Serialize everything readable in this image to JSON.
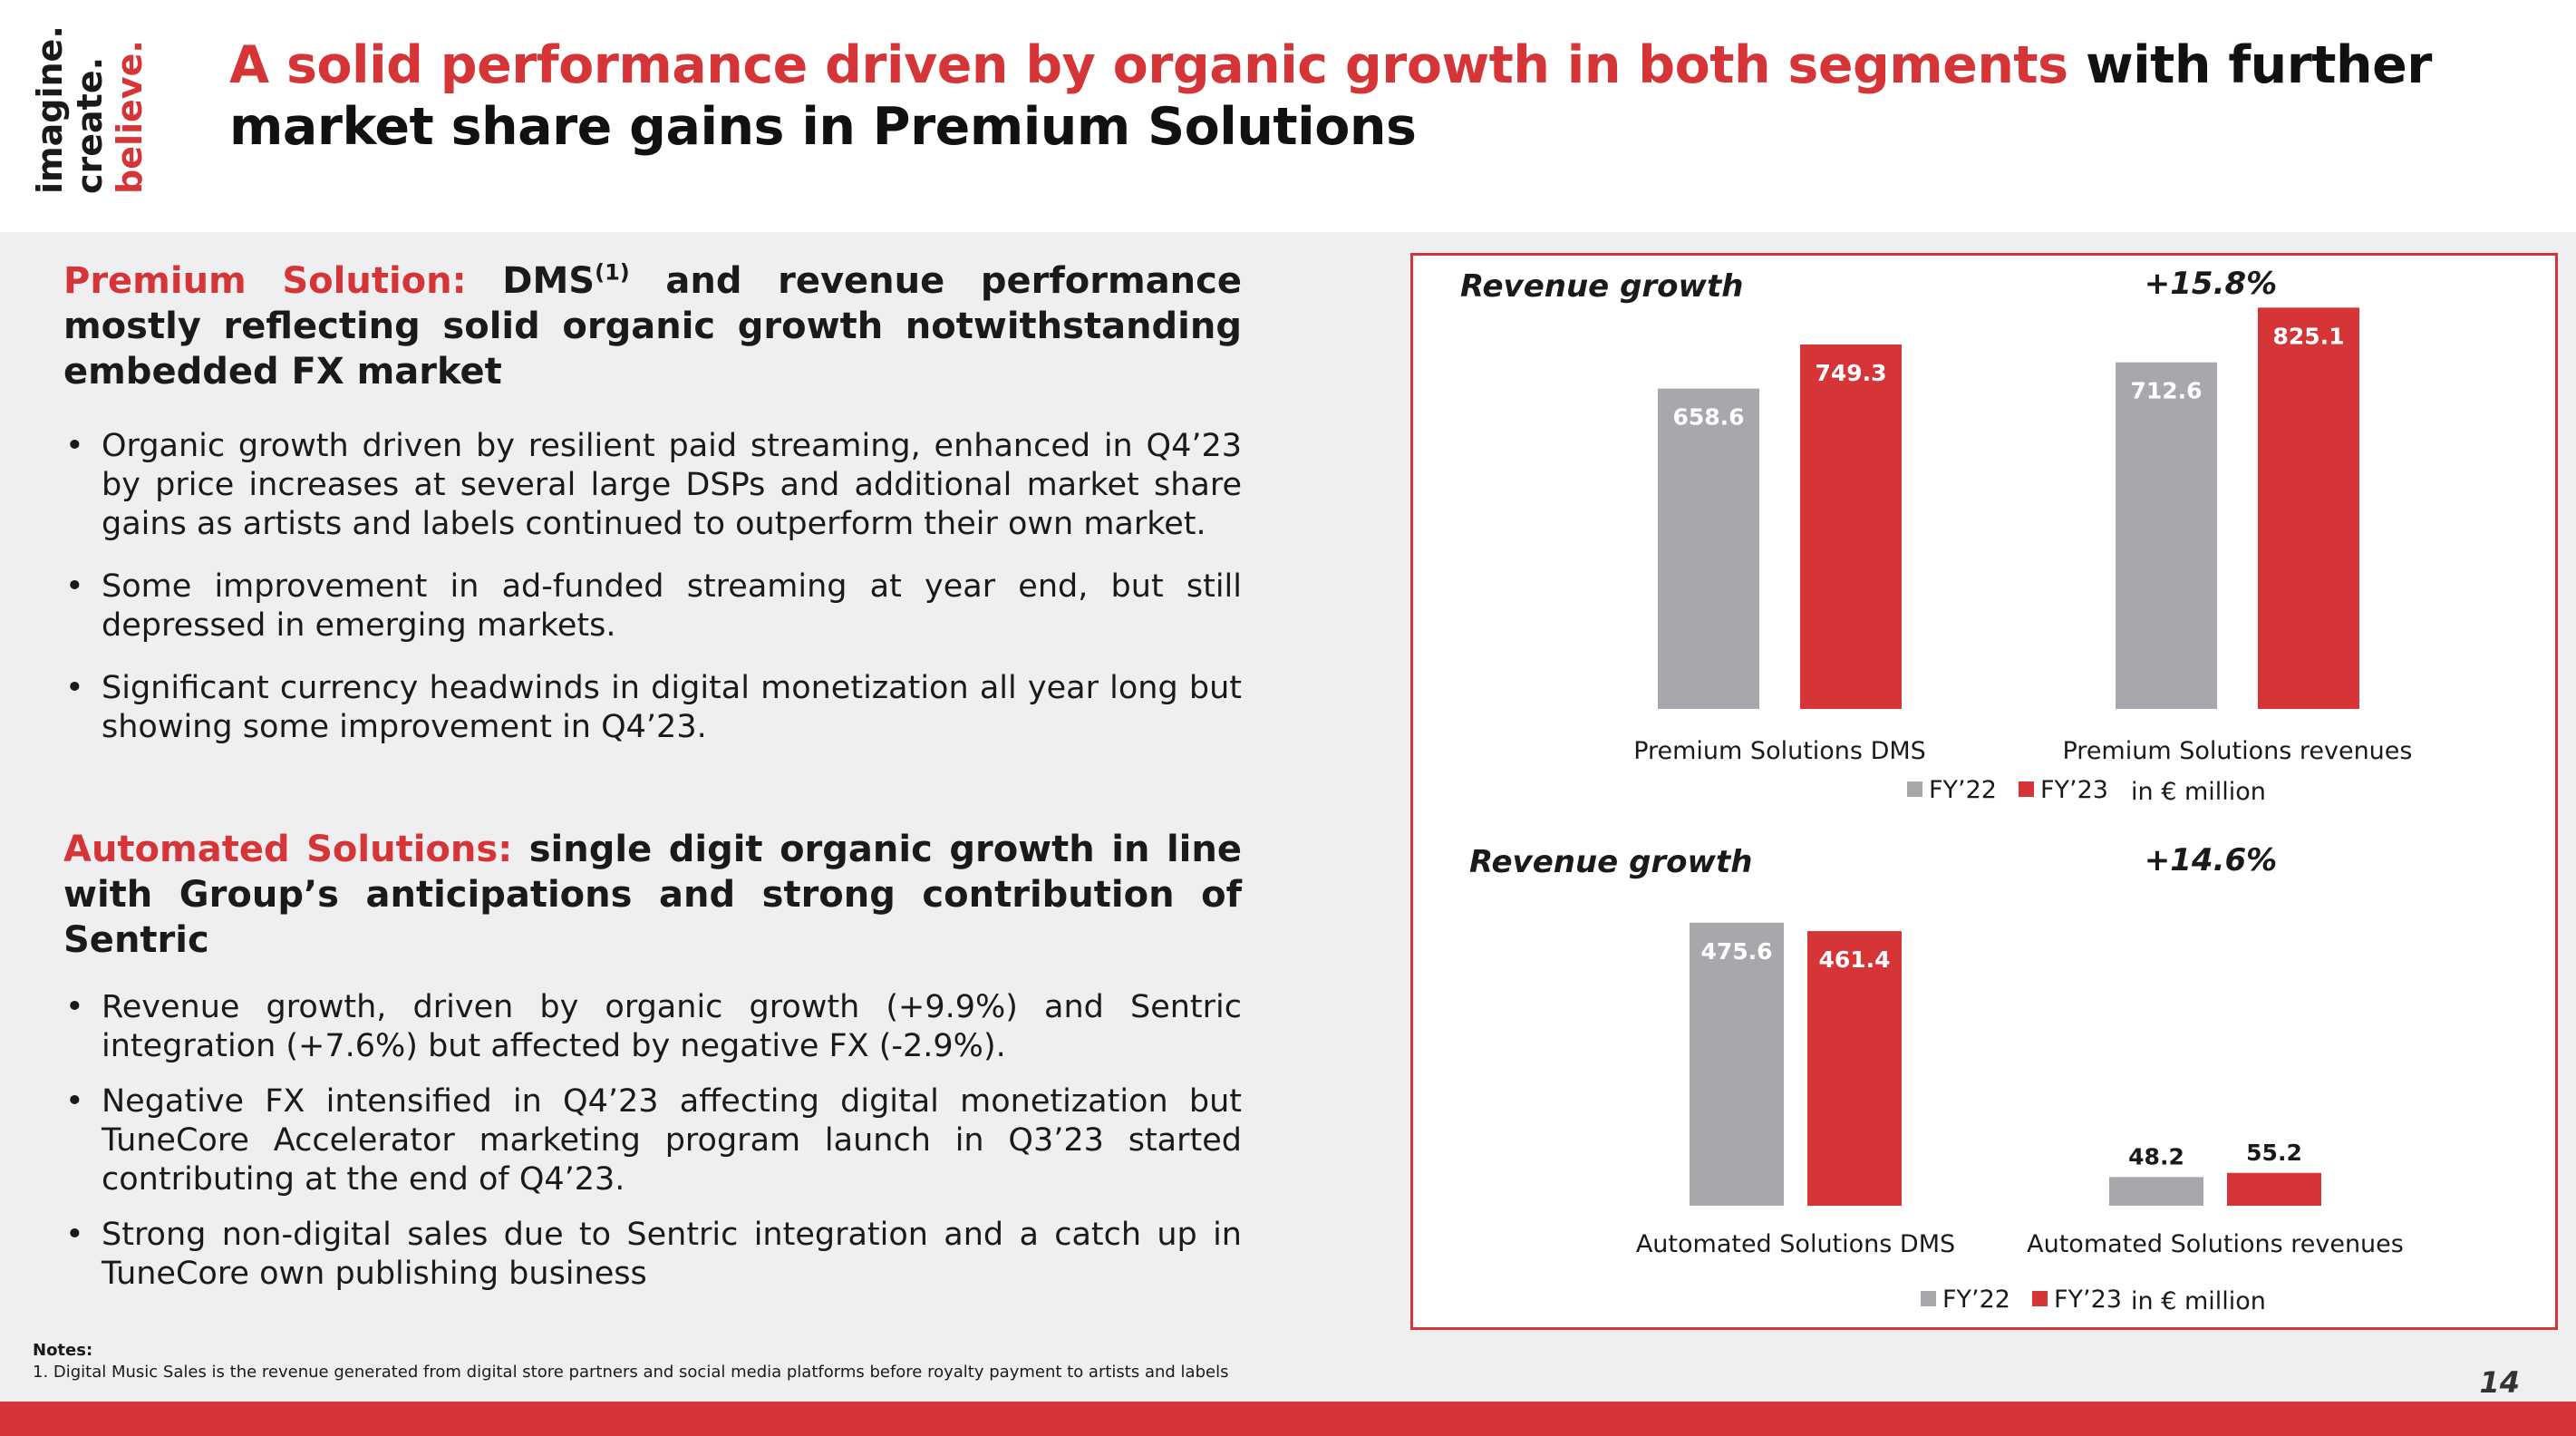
{
  "logo": {
    "lines": [
      "imagine.",
      "create.",
      "believe."
    ]
  },
  "title": {
    "red": "A solid performance driven by organic growth in both segments",
    "dark": " with further market share gains in Premium Solutions"
  },
  "premium": {
    "head_red": "Premium Solution:",
    "head_dark_pre": " DMS",
    "head_sup": "(1)",
    "head_dark_post": " and revenue performance mostly reflecting solid organic growth notwithstanding embedded FX market",
    "bullets": [
      "Organic growth driven by resilient paid streaming, enhanced in Q4’23 by price increases at several large DSPs and additional market share gains as artists and labels continued to outperform their own market.",
      "Some improvement in ad-funded streaming at year end, but still depressed in emerging markets.",
      "Significant currency headwinds in digital monetization all year long but showing some improvement in Q4’23."
    ]
  },
  "automated": {
    "head_red": "Automated Solutions:",
    "head_dark": " single digit organic growth in line with Group’s anticipations and strong contribution of Sentric",
    "bullets": [
      "Revenue growth, driven by organic growth (+9.9%) and Sentric integration (+7.6%) but affected by negative FX (-2.9%).",
      "Negative FX intensified in Q4’23 affecting digital monetization but TuneCore Accelerator marketing program launch in Q3’23 started contributing at the end of Q4’23.",
      "Strong non-digital sales due to Sentric integration and a catch up in TuneCore own publishing business"
    ]
  },
  "notes": {
    "title": "Notes:",
    "items": [
      "1. Digital Music Sales is the revenue generated from digital store partners and social media platforms before royalty payment to artists and labels"
    ]
  },
  "page_number": "14",
  "colors": {
    "accent": "#d63538",
    "fy22": "#a6a8ab",
    "fy23": "#d63538"
  },
  "chart_data": [
    {
      "type": "bar",
      "title": "Revenue growth",
      "annotation": "+15.8%",
      "unit_note": "in € million",
      "categories": [
        "Premium Solutions DMS",
        "Premium Solutions revenues"
      ],
      "series": [
        {
          "name": "FY’22",
          "values": [
            658.6,
            712.6
          ]
        },
        {
          "name": "FY’23",
          "values": [
            749.3,
            825.1
          ]
        }
      ],
      "value_labels": [
        [
          "658.6",
          "712.6"
        ],
        [
          "749.3",
          "825.1"
        ]
      ],
      "legend_position": "bottom",
      "grid": false
    },
    {
      "type": "bar",
      "title": "Revenue growth",
      "annotation": "+14.6%",
      "unit_note": "in € million",
      "categories": [
        "Automated Solutions DMS",
        "Automated Solutions revenues"
      ],
      "series": [
        {
          "name": "FY’22",
          "values": [
            475.6,
            48.2
          ]
        },
        {
          "name": "FY’23",
          "values": [
            461.4,
            55.2
          ]
        }
      ],
      "value_labels": [
        [
          "475.6",
          "48.2"
        ],
        [
          "461.4",
          "55.2"
        ]
      ],
      "legend_position": "bottom",
      "grid": false
    }
  ]
}
